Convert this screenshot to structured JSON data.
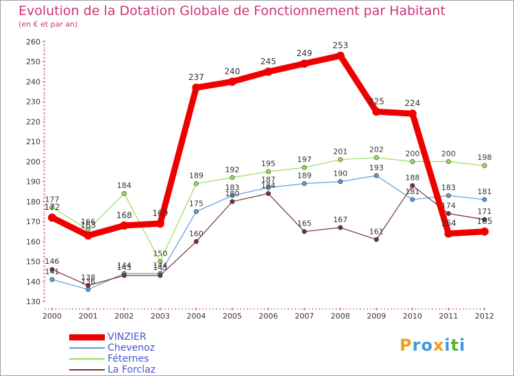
{
  "title": "Evolution de la Dotation Globale de Fonctionnement par Habitant",
  "subtitle": "(en € et par an)",
  "logo": {
    "text": "Proxiti",
    "colors": [
      "#e8a020",
      "#3a9bd9",
      "#3a9bd9",
      "#e8a020",
      "#3a9bd9",
      "#5ab030",
      "#3a9bd9"
    ]
  },
  "chart_data": {
    "type": "line",
    "title": "Evolution de la Dotation Globale de Fonctionnement par Habitant",
    "ylabel": "(en € et par an)",
    "xlabel": "",
    "ylim": [
      130,
      260
    ],
    "yticks": [
      130,
      140,
      150,
      160,
      170,
      180,
      190,
      200,
      210,
      220,
      230,
      240,
      250,
      260
    ],
    "grid": false,
    "legend_position": "bottom-left",
    "x": [
      "2000",
      "2001",
      "2002",
      "2003",
      "2004",
      "2005",
      "2006",
      "2007",
      "2008",
      "2009",
      "2010",
      "2011",
      "2012"
    ],
    "series": [
      {
        "name": "VINZIER",
        "color": "#ee0000",
        "emphasis": true,
        "values": [
          172,
          163,
          168,
          169,
          237,
          240,
          245,
          249,
          253,
          225,
          224,
          164,
          165
        ]
      },
      {
        "name": "Chevenoz",
        "color": "#5b9bd5",
        "emphasis": false,
        "values": [
          141,
          136,
          144,
          144,
          175,
          183,
          187,
          189,
          190,
          193,
          181,
          183,
          181
        ]
      },
      {
        "name": "Féternes",
        "color": "#99dd55",
        "emphasis": false,
        "values": [
          177,
          166,
          184,
          150,
          189,
          192,
          195,
          197,
          201,
          202,
          200,
          200,
          198
        ]
      },
      {
        "name": "La Forclaz",
        "color": "#7a3030",
        "emphasis": false,
        "values": [
          146,
          138,
          143,
          143,
          160,
          180,
          184,
          165,
          167,
          161,
          188,
          174,
          171
        ]
      }
    ]
  }
}
